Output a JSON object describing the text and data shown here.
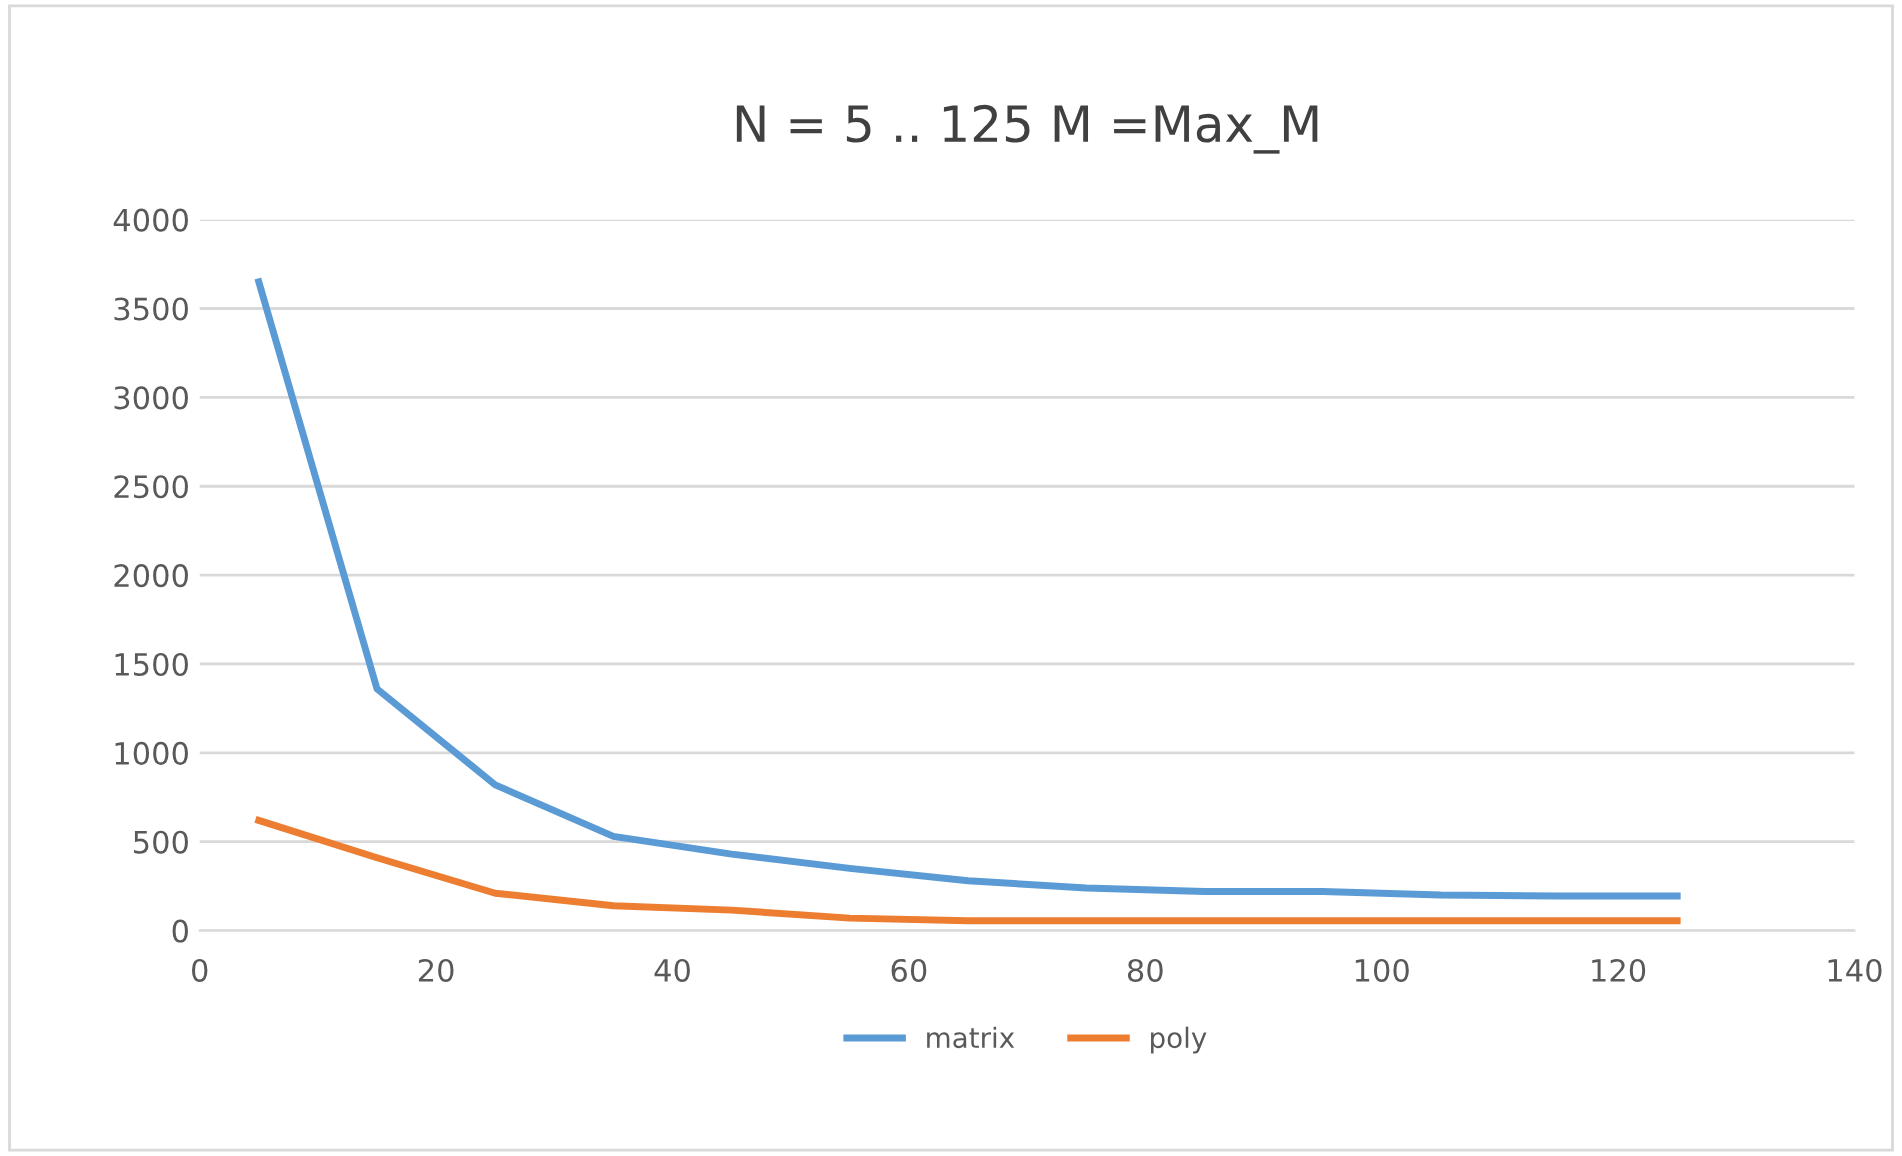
{
  "chart_data": {
    "type": "line",
    "title": "N = 5 .. 125 M =Max_M",
    "x": [
      5,
      15,
      25,
      35,
      45,
      55,
      65,
      75,
      85,
      95,
      105,
      115,
      125
    ],
    "series": [
      {
        "name": "matrix",
        "color": "#5b9bd5",
        "values": [
          3650,
          1360,
          820,
          530,
          430,
          350,
          280,
          240,
          220,
          220,
          200,
          195,
          195
        ]
      },
      {
        "name": "poly",
        "color": "#ed7d31",
        "values": [
          620,
          410,
          210,
          140,
          115,
          70,
          55,
          55,
          55,
          55,
          55,
          55,
          55
        ]
      }
    ],
    "xlim": [
      0,
      140
    ],
    "xticks": [
      0,
      20,
      40,
      60,
      80,
      100,
      120,
      140
    ],
    "ylim": [
      0,
      4000
    ],
    "yticks": [
      0,
      500,
      1000,
      1500,
      2000,
      2500,
      3000,
      3500,
      4000
    ],
    "grid": "y",
    "legend": "bottom",
    "marker": "none",
    "line_style": "solid"
  }
}
